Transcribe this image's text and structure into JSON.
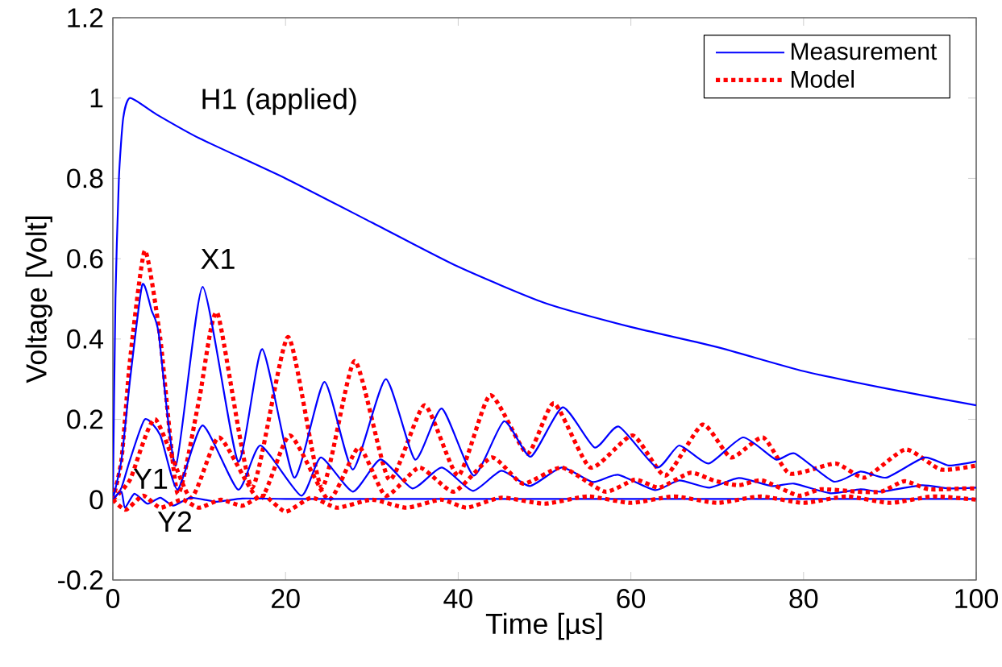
{
  "chart_data": {
    "type": "line",
    "xlabel": "Time [µs]",
    "ylabel": "Voltage [Volt]",
    "xlim": [
      0,
      100
    ],
    "ylim": [
      -0.2,
      1.2
    ],
    "xticks": [
      0,
      20,
      40,
      60,
      80,
      100
    ],
    "yticks": [
      -0.2,
      0,
      0.2,
      0.4,
      0.6,
      0.8,
      1,
      1.2
    ],
    "grid": false,
    "legend": "top right",
    "marker": "none",
    "annotations": [
      "H1 (applied)",
      "X1",
      "Y1",
      "Y2"
    ],
    "series": [
      {
        "name": "Measurement",
        "color": "#0000ff",
        "line_style": "solid",
        "x": [
          0,
          0.3,
          0.7,
          1.2,
          2,
          5,
          10,
          20,
          30,
          40,
          50,
          60,
          70,
          80,
          90,
          100
        ],
        "values": [
          0,
          0.5,
          0.8,
          0.95,
          1.0,
          0.96,
          0.9,
          0.8,
          0.69,
          0.58,
          0.49,
          0.43,
          0.38,
          0.32,
          0.275,
          0.235
        ]
      },
      {
        "name": "Model",
        "color": "#ff0000",
        "line_style": "dotted",
        "x": [
          0,
          1,
          2,
          3.7,
          5.5,
          7.5,
          10,
          12.1,
          16.1,
          20.3,
          24.2,
          28,
          32,
          36.1,
          40,
          43.7,
          48,
          51.1,
          55.3,
          60.2,
          64,
          68.3,
          71.6,
          75.3,
          78.4,
          83.7,
          87.1,
          91.8,
          95.9,
          100
        ],
        "values": [
          0,
          0.1,
          0.35,
          0.62,
          0.4,
          0.015,
          0.25,
          0.465,
          0.03,
          0.405,
          0.03,
          0.345,
          0.05,
          0.235,
          0.06,
          0.26,
          0.115,
          0.24,
          0.08,
          0.16,
          0.06,
          0.187,
          0.105,
          0.155,
          0.065,
          0.09,
          0.055,
          0.125,
          0.075,
          0.085
        ]
      },
      {
        "color": "#0000ff",
        "line_style": "solid",
        "x": [
          0,
          1,
          2,
          3.4,
          4.5,
          5.3,
          7.3,
          10.4,
          14.5,
          17.3,
          21,
          24.5,
          27.8,
          31.6,
          35,
          38.1,
          41.8,
          45.3,
          48.4,
          52.1,
          55.8,
          58.6,
          63,
          65.6,
          69,
          73,
          76.8,
          79,
          83.5,
          86.6,
          89.6,
          94,
          96.8,
          100
        ],
        "values": [
          0,
          0.1,
          0.3,
          0.535,
          0.47,
          0.415,
          0.085,
          0.53,
          0.095,
          0.375,
          0.055,
          0.293,
          0.075,
          0.3,
          0.1,
          0.227,
          0.06,
          0.195,
          0.107,
          0.23,
          0.13,
          0.182,
          0.08,
          0.135,
          0.09,
          0.155,
          0.1,
          0.115,
          0.045,
          0.07,
          0.055,
          0.105,
          0.085,
          0.095
        ]
      },
      {
        "color": "#0000ff",
        "line_style": "solid",
        "x": [
          0,
          1,
          2,
          3.7,
          5.5,
          7.5,
          10.4,
          14.5,
          17.1,
          21.8,
          24.1,
          27.8,
          31,
          34.7,
          38.1,
          41.7,
          45,
          48.3,
          52,
          55.6,
          58.5,
          62.8,
          65.6,
          69.1,
          72.5,
          76.3,
          78.9,
          83.1,
          86.6,
          89,
          93.7,
          96.8,
          100
        ],
        "values": [
          0,
          0.03,
          0.1,
          0.2,
          0.16,
          0.025,
          0.185,
          0.025,
          0.135,
          0.01,
          0.105,
          0.02,
          0.1,
          0.028,
          0.08,
          0.022,
          0.072,
          0.034,
          0.08,
          0.044,
          0.062,
          0.024,
          0.048,
          0.03,
          0.054,
          0.034,
          0.04,
          0.016,
          0.026,
          0.02,
          0.036,
          0.028,
          0.03
        ]
      },
      {
        "color": "#ff0000",
        "line_style": "dotted",
        "x": [
          0,
          2,
          4.9,
          9,
          12.3,
          17,
          20.5,
          25,
          28.5,
          31.6,
          35.5,
          39.5,
          43.9,
          47.5,
          52,
          57,
          60.5,
          63.3,
          66.9,
          69.7,
          72.5,
          75.2,
          79.4,
          82,
          86.2,
          89,
          91.7,
          94.5,
          98.7,
          100
        ],
        "values": [
          0,
          0.05,
          0.2,
          0.005,
          0.155,
          0.0,
          0.16,
          0.0,
          0.13,
          0.01,
          0.08,
          0.02,
          0.105,
          0.04,
          0.08,
          0.02,
          0.05,
          0.03,
          0.067,
          0.047,
          0.036,
          0.048,
          0.01,
          0.026,
          0.02,
          0.02,
          0.046,
          0.026,
          0.028,
          0.028
        ]
      },
      {
        "color": "#0000ff",
        "line_style": "solid",
        "x": [
          0,
          1,
          1.4,
          2.5,
          4,
          5.5,
          7,
          9,
          12,
          15,
          20,
          30,
          50,
          70,
          100
        ],
        "values": [
          0,
          0.02,
          -0.02,
          0.015,
          -0.01,
          0.005,
          -0.015,
          0.005,
          -0.005,
          0.003,
          0.002,
          0.002,
          0.002,
          0.002,
          0.002
        ]
      },
      {
        "color": "#ff0000",
        "line_style": "dotted",
        "x": [
          0,
          1.5,
          3.5,
          5.5,
          8,
          10,
          12.5,
          15,
          17.5,
          20,
          23,
          26,
          30,
          34,
          38,
          41,
          45,
          50,
          55,
          60,
          65,
          70,
          75,
          80,
          85,
          90,
          95,
          100
        ],
        "values": [
          0,
          -0.025,
          0.01,
          -0.02,
          0.0,
          -0.02,
          0.0,
          -0.015,
          0.01,
          -0.03,
          0.005,
          -0.02,
          0.0,
          -0.02,
          0.0,
          -0.02,
          0.005,
          -0.01,
          0.008,
          -0.008,
          0.008,
          -0.008,
          0.008,
          -0.008,
          0.008,
          -0.008,
          0.008,
          0.0
        ]
      }
    ]
  }
}
